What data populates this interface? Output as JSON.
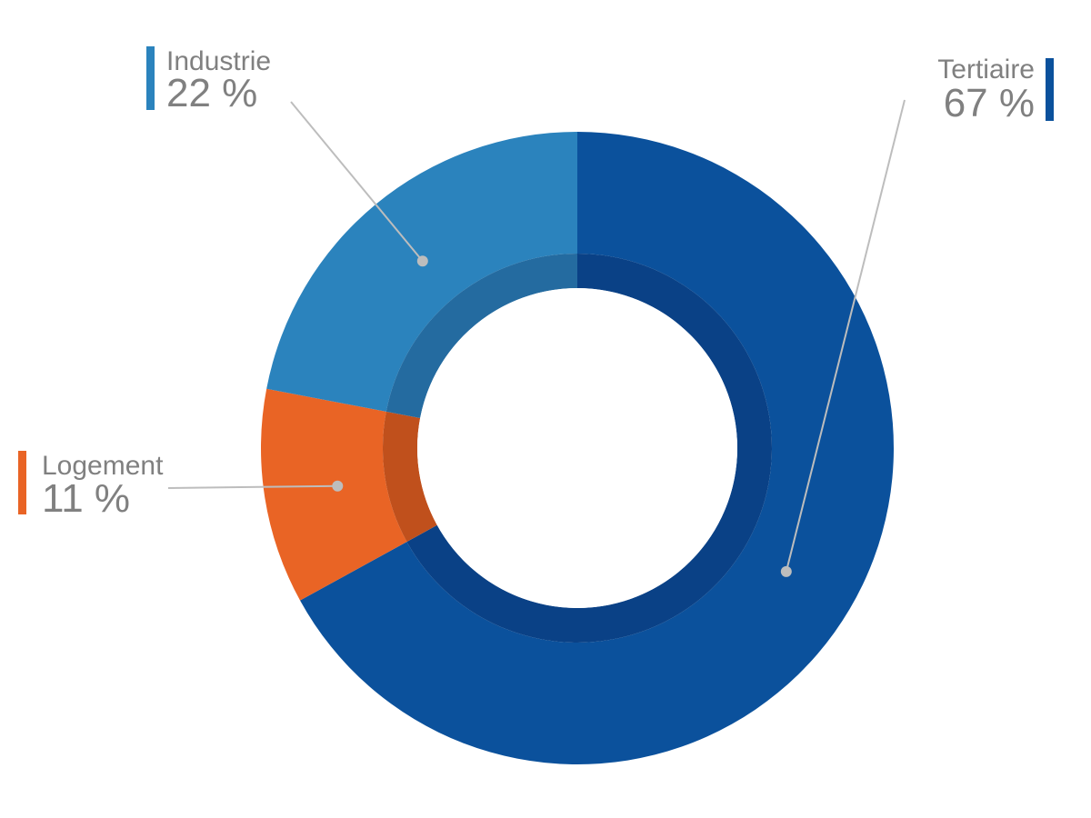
{
  "chart_data": {
    "type": "pie",
    "variant": "donut",
    "title": "",
    "slices": [
      {
        "label": "Tertiaire",
        "value": 67,
        "value_label": "67 %",
        "color": "#0b519c",
        "inner_color": "#0a4186",
        "legend_position": "top-right"
      },
      {
        "label": "Logement",
        "value": 11,
        "value_label": "11 %",
        "color": "#e96425",
        "inner_color": "#c0501c",
        "legend_position": "left"
      },
      {
        "label": "Industrie",
        "value": 22,
        "value_label": "22 %",
        "color": "#2b83bd",
        "inner_color": "#246ba0",
        "legend_position": "top-left"
      }
    ],
    "leader_line_color": "#bdbdbd",
    "label_text_color": "#808080"
  }
}
